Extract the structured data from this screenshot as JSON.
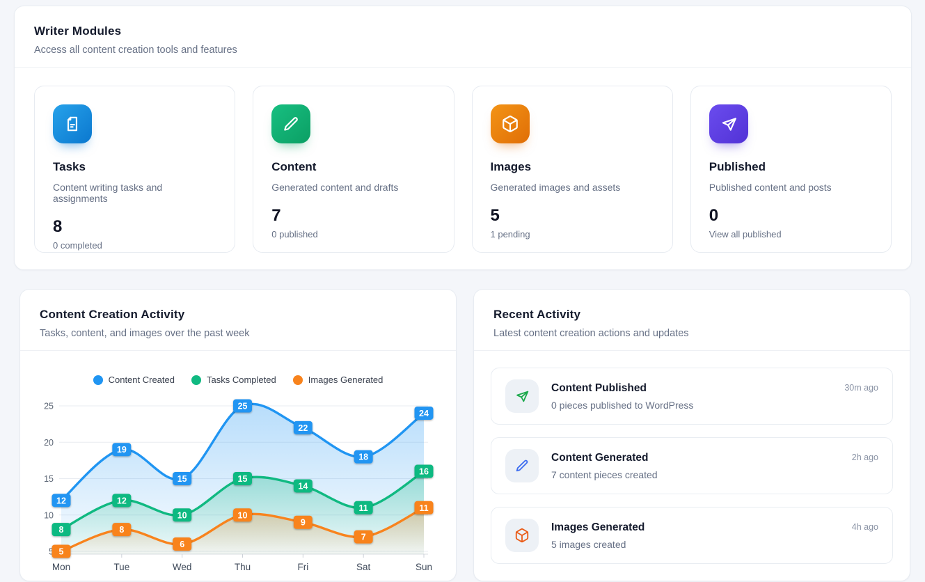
{
  "colors": {
    "page_background": "#f4f6fa",
    "card_background": "#ffffff",
    "card_border": "#e8ecf2",
    "tile_blue": "#0d7fd2",
    "tile_green": "#10ad72",
    "tile_orange": "#ec7607",
    "tile_purple": "#5d3fe3",
    "activity_icon_green": "#1ca94c",
    "activity_icon_blue": "#3e6df0",
    "activity_icon_orange": "#ea5b17",
    "heading_text": "#141a2c",
    "muted_text": "#667085",
    "timestamp_text": "#8a93a5"
  },
  "modules_panel": {
    "title": "Writer Modules",
    "subtitle": "Access all content creation tools and features",
    "cards": [
      {
        "title": "Tasks",
        "description": "Content writing tasks and assignments",
        "value": "8",
        "subtext": "0 completed",
        "icon": "file-text-icon",
        "accent": "#0d7fd2"
      },
      {
        "title": "Content",
        "description": "Generated content and drafts",
        "value": "7",
        "subtext": "0 published",
        "icon": "pencil-icon",
        "accent": "#10ad72"
      },
      {
        "title": "Images",
        "description": "Generated images and assets",
        "value": "5",
        "subtext": "1 pending",
        "icon": "cube-icon",
        "accent": "#ec7607"
      },
      {
        "title": "Published",
        "description": "Published content and posts",
        "value": "0",
        "subtext": "View all published",
        "icon": "send-icon",
        "accent": "#5d3fe3"
      }
    ]
  },
  "chart_panel": {
    "title": "Content Creation Activity",
    "subtitle": "Tasks, content, and images over the past week"
  },
  "chart_data": {
    "type": "line",
    "categories": [
      "Mon",
      "Tue",
      "Wed",
      "Thu",
      "Fri",
      "Sat",
      "Sun"
    ],
    "series": [
      {
        "name": "Content Created",
        "color": "#2095f2",
        "values": [
          12,
          19,
          15,
          25,
          22,
          18,
          24
        ]
      },
      {
        "name": "Tasks Completed",
        "color": "#10b981",
        "values": [
          8,
          12,
          10,
          15,
          14,
          11,
          16
        ]
      },
      {
        "name": "Images Generated",
        "color": "#f8831d",
        "values": [
          5,
          8,
          6,
          10,
          9,
          7,
          11
        ]
      }
    ],
    "ylim": [
      5,
      25
    ],
    "yticks": [
      5,
      10,
      15,
      20,
      25
    ],
    "xlabel": "",
    "ylabel": "",
    "grid": true,
    "smooth": true,
    "area": true,
    "data_labels": true,
    "legend_position": "top"
  },
  "recent_panel": {
    "title": "Recent Activity",
    "subtitle": "Latest content creation actions and updates",
    "items": [
      {
        "title": "Content Published",
        "description": "0 pieces published to WordPress",
        "time": "30m ago",
        "icon": "send-icon"
      },
      {
        "title": "Content Generated",
        "description": "7 content pieces created",
        "time": "2h ago",
        "icon": "pencil-icon"
      },
      {
        "title": "Images Generated",
        "description": "5 images created",
        "time": "4h ago",
        "icon": "cube-icon"
      }
    ]
  }
}
